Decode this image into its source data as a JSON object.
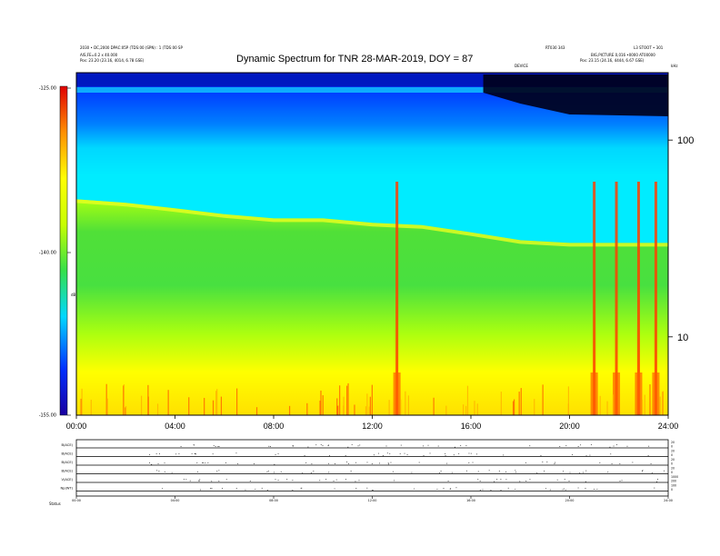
{
  "header": {
    "title": "Dynamic Spectrum for TNR 28-MAR-2019, DOY = 87",
    "left_line1": "2030 • DC,2000 DPAC:05P (TDS:00 (SPN) : 1 (TDS:00 SP",
    "left_line2": "AIS,FE=0.2 x 40.000",
    "left_line3": "Pos:    23.20 (23.16, 4014, 6.78 GSE)",
    "right_line1": "RT030 343",
    "right_line2": "L3 STOOT • 301",
    "right_line3": "BIG,PICTURE 0,016 •0000 AT00000",
    "right_line4": "Pos:    23.15 (24.16, 4444, 6.67 GSE)",
    "mid_label": "DEVICE",
    "corner_label": "kHz"
  },
  "colorbar": {
    "ticks": [
      "-125.00",
      "-140.00",
      "-155.00"
    ],
    "unit": "dB"
  },
  "chart_data": [
    {
      "type": "heatmap",
      "title": "Dynamic Spectrum for TNR 28-MAR-2019, DOY = 87",
      "xlabel": "",
      "ylabel": "kHz",
      "x_ticks": [
        "00:00",
        "04:00",
        "08:00",
        "12:00",
        "16:00",
        "20:00",
        "24:00"
      ],
      "y_scale": "log",
      "y_ticks": [
        10,
        100
      ],
      "y_range_khz": [
        4,
        220
      ],
      "x_range_hours": [
        0,
        24
      ],
      "colorbar_range_db": [
        -155,
        -125
      ],
      "colorscale": [
        "#1a00a0",
        "#0030ff",
        "#00d8ff",
        "#36e04a",
        "#c8ff00",
        "#ffff00",
        "#ff9000",
        "#e00000"
      ],
      "features": {
        "low_band_boundary_khz": [
          [
            0,
            50
          ],
          [
            2,
            48
          ],
          [
            4,
            45
          ],
          [
            6,
            42
          ],
          [
            8,
            40
          ],
          [
            10,
            40
          ],
          [
            12,
            38
          ],
          [
            14,
            37
          ],
          [
            16,
            34
          ],
          [
            18,
            31
          ],
          [
            20,
            30
          ],
          [
            22,
            30
          ],
          [
            24,
            30
          ]
        ],
        "bursts_hours": [
          13.0,
          21.0,
          21.9,
          22.8,
          23.5
        ]
      }
    },
    {
      "type": "line",
      "title": "",
      "x_ticks": [
        "00:00",
        "04:00",
        "08:00",
        "12:00",
        "16:00",
        "20:00",
        "24:00"
      ],
      "panels": [
        {
          "label": "B(ACE)",
          "right_ticks": [
            "20",
            "0"
          ]
        },
        {
          "label": "B(ACE)",
          "right_ticks": [
            "20",
            "0"
          ]
        },
        {
          "label": "B(ACE)",
          "right_ticks": [
            "20",
            "0"
          ]
        },
        {
          "label": "B(ACE)",
          "right_ticks": [
            "20",
            "0"
          ]
        },
        {
          "label": "V(ACE)",
          "right_ticks": [
            "1000",
            "200"
          ]
        },
        {
          "label": "Np(WT)",
          "right_ticks": [
            "100",
            "0"
          ]
        }
      ],
      "footer_label": "Status"
    }
  ]
}
